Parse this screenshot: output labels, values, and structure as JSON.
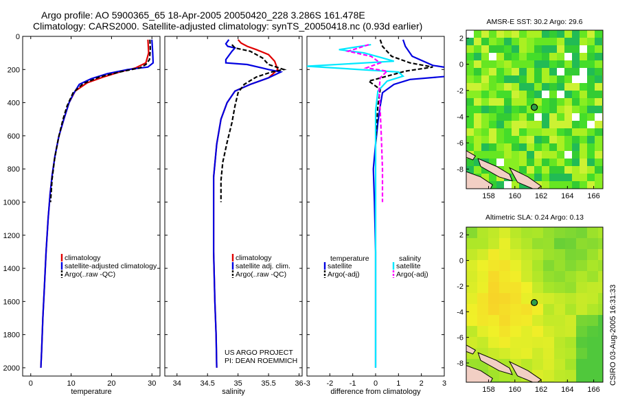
{
  "header": {
    "line1": "Argo profile: AO 5900365_65 18-Apr-2005 20050420_228 3.286S 161.478E",
    "line2": "Climatology: CARS2000. Satellite-adjusted climatology: synTS_20050418.nc (0.93d earlier)"
  },
  "credit": {
    "line1": "US ARGO PROJECT",
    "line2": "PI: DEAN ROEMMICH"
  },
  "side_label": "CSIRO 03-Aug-2005 16:31:33",
  "colors": {
    "climatology": "#e00000",
    "satellite": "#0000e0",
    "argo": "#000000",
    "sal_satellite": "#00e8ff",
    "sal_argo": "#ff00ff"
  },
  "chart_data": [
    {
      "type": "line",
      "id": "temperature",
      "xlabel": "temperature",
      "ylabel": "",
      "xlim": [
        -2,
        32
      ],
      "ylim": [
        2050,
        0
      ],
      "xticks": [
        0,
        10,
        20,
        30
      ],
      "yticks": [
        0,
        200,
        400,
        600,
        800,
        1000,
        1200,
        1400,
        1600,
        1800,
        2000
      ],
      "legend": [
        "climatology",
        "satellite-adjusted climatology",
        "Argo(..raw -QC)"
      ],
      "series": [
        {
          "name": "climatology",
          "color": "#e00000",
          "dash": "",
          "points": [
            [
              29,
              20
            ],
            [
              29.2,
              100
            ],
            [
              28.5,
              160
            ],
            [
              26,
              190
            ],
            [
              22,
              215
            ],
            [
              18,
              245
            ],
            [
              14,
              280
            ],
            [
              11,
              330
            ],
            [
              9.5,
              400
            ],
            [
              8.2,
              500
            ],
            [
              7,
              600
            ],
            [
              6,
              720
            ],
            [
              5.3,
              840
            ],
            [
              4.8,
              950
            ],
            [
              4.3,
              1100
            ],
            [
              3.8,
              1300
            ],
            [
              3.4,
              1500
            ],
            [
              3.0,
              1700
            ],
            [
              2.7,
              1900
            ],
            [
              2.5,
              2000
            ]
          ]
        },
        {
          "name": "satellite-adjusted climatology",
          "color": "#0000e0",
          "dash": "",
          "points": [
            [
              30,
              20
            ],
            [
              30.2,
              100
            ],
            [
              30.3,
              160
            ],
            [
              29,
              185
            ],
            [
              24,
              200
            ],
            [
              19,
              225
            ],
            [
              15,
              255
            ],
            [
              12,
              290
            ],
            [
              10.5,
              350
            ],
            [
              9.5,
              400
            ],
            [
              8.2,
              500
            ],
            [
              7,
              600
            ],
            [
              6,
              720
            ],
            [
              5.3,
              840
            ],
            [
              4.8,
              950
            ],
            [
              4.3,
              1100
            ],
            [
              3.8,
              1300
            ],
            [
              3.4,
              1500
            ],
            [
              3.0,
              1700
            ],
            [
              2.7,
              1900
            ],
            [
              2.5,
              2000
            ]
          ]
        },
        {
          "name": "Argo(..raw -QC)",
          "color": "#000000",
          "dash": "6,3",
          "points": [
            [
              29.5,
              20
            ],
            [
              29.6,
              80
            ],
            [
              29.4,
              140
            ],
            [
              28.5,
              170
            ],
            [
              27,
              190
            ],
            [
              22,
              215
            ],
            [
              17,
              245
            ],
            [
              13,
              285
            ],
            [
              10.5,
              340
            ],
            [
              9,
              420
            ],
            [
              8,
              500
            ],
            [
              6.8,
              620
            ],
            [
              5.9,
              740
            ],
            [
              5.3,
              860
            ],
            [
              4.9,
              1000
            ]
          ]
        }
      ]
    },
    {
      "type": "line",
      "id": "salinity",
      "xlabel": "salinity",
      "ylabel": "",
      "xlim": [
        33.8,
        36.05
      ],
      "ylim": [
        2050,
        0
      ],
      "xticks": [
        34,
        34.5,
        35,
        35.5,
        36
      ],
      "legend": [
        "climatology",
        "satellite adj. clim.",
        "Argo(..raw -QC)"
      ],
      "series": [
        {
          "name": "climatology",
          "color": "#e00000",
          "dash": "",
          "points": [
            [
              35.0,
              20
            ],
            [
              35.05,
              40
            ],
            [
              35.15,
              60
            ],
            [
              35.3,
              80
            ],
            [
              35.5,
              110
            ],
            [
              35.6,
              150
            ],
            [
              35.65,
              200
            ],
            [
              35.5,
              250
            ],
            [
              35.2,
              290
            ],
            [
              34.95,
              330
            ],
            [
              34.82,
              400
            ],
            [
              34.72,
              500
            ],
            [
              34.65,
              650
            ],
            [
              34.6,
              850
            ],
            [
              34.6,
              1050
            ],
            [
              34.6,
              1300
            ],
            [
              34.62,
              1600
            ],
            [
              34.64,
              1800
            ],
            [
              34.65,
              2000
            ]
          ]
        },
        {
          "name": "satellite adj. clim.",
          "color": "#0000e0",
          "dash": "",
          "points": [
            [
              34.85,
              20
            ],
            [
              34.8,
              45
            ],
            [
              34.83,
              60
            ],
            [
              34.95,
              70
            ],
            [
              34.9,
              90
            ],
            [
              34.8,
              140
            ],
            [
              34.8,
              160
            ],
            [
              35.15,
              170
            ],
            [
              35.5,
              200
            ],
            [
              35.7,
              215
            ],
            [
              35.5,
              250
            ],
            [
              35.2,
              290
            ],
            [
              34.95,
              330
            ],
            [
              34.82,
              400
            ],
            [
              34.72,
              500
            ],
            [
              34.65,
              650
            ],
            [
              34.6,
              850
            ],
            [
              34.6,
              1050
            ],
            [
              34.6,
              1300
            ],
            [
              34.62,
              1600
            ],
            [
              34.64,
              1800
            ],
            [
              34.65,
              2000
            ]
          ]
        },
        {
          "name": "Argo(..raw -QC)",
          "color": "#000000",
          "dash": "6,3",
          "points": [
            [
              34.9,
              50
            ],
            [
              34.95,
              70
            ],
            [
              35.2,
              90
            ],
            [
              35.4,
              130
            ],
            [
              35.5,
              170
            ],
            [
              35.75,
              200
            ],
            [
              35.55,
              215
            ],
            [
              35.3,
              245
            ],
            [
              35.1,
              290
            ],
            [
              35.0,
              340
            ],
            [
              34.95,
              420
            ],
            [
              34.9,
              520
            ],
            [
              34.82,
              640
            ],
            [
              34.75,
              760
            ],
            [
              34.72,
              870
            ],
            [
              34.72,
              1000
            ]
          ]
        }
      ]
    },
    {
      "type": "line",
      "id": "difference",
      "xlabel": "difference from climatology",
      "ylabel": "",
      "xlim": [
        -3,
        3
      ],
      "ylim": [
        2050,
        0
      ],
      "xticks": [
        -3,
        -2,
        -1,
        0,
        1,
        2,
        3
      ],
      "legend_left": [
        "temperature",
        "satellite",
        "Argo(-adj)"
      ],
      "legend_right": [
        "salinity",
        "satellite",
        "Argo(-adj)"
      ],
      "series": [
        {
          "name": "temperature satellite",
          "color": "#0000e0",
          "dash": "",
          "points": [
            [
              1.2,
              20
            ],
            [
              1.3,
              60
            ],
            [
              1.6,
              120
            ],
            [
              2.5,
              175
            ],
            [
              3.2,
              190
            ],
            [
              3.2,
              240
            ],
            [
              1.5,
              260
            ],
            [
              0.8,
              290
            ],
            [
              0.3,
              340
            ],
            [
              0.2,
              420
            ],
            [
              0.1,
              520
            ],
            [
              0,
              650
            ],
            [
              -0.1,
              800
            ],
            [
              -0.05,
              1000
            ],
            [
              0,
              1300
            ],
            [
              0,
              1600
            ],
            [
              0,
              2000
            ]
          ]
        },
        {
          "name": "temperature Argo(-adj)",
          "color": "#000000",
          "dash": "6,3",
          "points": [
            [
              0.2,
              20
            ],
            [
              0.3,
              60
            ],
            [
              0.7,
              120
            ],
            [
              1.5,
              160
            ],
            [
              2.5,
              185
            ],
            [
              1.3,
              210
            ],
            [
              0.5,
              240
            ],
            [
              -0.3,
              270
            ],
            [
              0.2,
              320
            ],
            [
              0.1,
              420
            ],
            [
              0.05,
              520
            ],
            [
              0,
              650
            ]
          ]
        },
        {
          "name": "salinity satellite",
          "color": "#00e8ff",
          "dash": "",
          "points": [
            [
              -0.2,
              50
            ],
            [
              -1.6,
              80
            ],
            [
              -0.5,
              100
            ],
            [
              0.3,
              130
            ],
            [
              0.8,
              150
            ],
            [
              -3,
              180
            ],
            [
              1.0,
              215
            ],
            [
              1.2,
              240
            ],
            [
              0.5,
              270
            ],
            [
              0.1,
              330
            ],
            [
              0,
              450
            ],
            [
              0,
              700
            ],
            [
              0,
              1000
            ],
            [
              0,
              1400
            ],
            [
              0,
              1800
            ],
            [
              0,
              2000
            ]
          ]
        },
        {
          "name": "salinity Argo(-adj)",
          "color": "#ff00ff",
          "dash": "6,3",
          "points": [
            [
              -0.3,
              50
            ],
            [
              -1.2,
              90
            ],
            [
              -0.2,
              120
            ],
            [
              0.2,
              160
            ],
            [
              -0.4,
              190
            ],
            [
              0.5,
              210
            ],
            [
              0.2,
              250
            ],
            [
              0.15,
              330
            ],
            [
              0.2,
              450
            ],
            [
              0.25,
              600
            ],
            [
              0.3,
              800
            ],
            [
              0.3,
              1000
            ]
          ]
        }
      ]
    },
    {
      "type": "heatmap",
      "id": "sst_map",
      "title": "AMSR-E SST: 30.2 Argo: 29.6",
      "xlim": [
        156.3,
        166.7
      ],
      "ylim": [
        -9.5,
        2.6
      ],
      "xticks": [
        158,
        160,
        162,
        164,
        166
      ],
      "yticks": [
        2,
        0,
        -2,
        -4,
        -6,
        -8
      ],
      "marker": [
        161.478,
        -3.286
      ]
    },
    {
      "type": "heatmap",
      "id": "sla_map",
      "title": "Altimetric SLA: 0.24 Argo: 0.13",
      "xlim": [
        156.3,
        166.7
      ],
      "ylim": [
        -9.5,
        2.6
      ],
      "xticks": [
        158,
        160,
        162,
        164,
        166
      ],
      "yticks": [
        2,
        0,
        -2,
        -4,
        -6,
        -8
      ],
      "marker": [
        161.478,
        -3.286
      ]
    }
  ]
}
